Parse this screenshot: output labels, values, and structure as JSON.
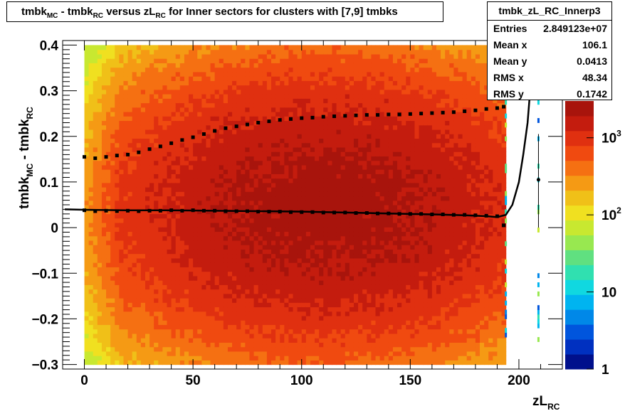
{
  "title": {
    "parts": [
      {
        "t": "tmbk",
        "sub": "MC"
      },
      {
        "t": " - tmbk",
        "sub": "RC"
      },
      {
        "t": " versus zL",
        "sub": "RC"
      },
      {
        "t": " for Inner sectors for clusters with [7,9] tmbks",
        "sub": ""
      }
    ]
  },
  "stats": {
    "name": "tmbk_zL_RC_Innerp3",
    "rows": [
      {
        "label": "Entries",
        "value": "2.849123e+07"
      },
      {
        "label": "Mean x",
        "value": "106.1"
      },
      {
        "label": "Mean y",
        "value": "0.0413"
      },
      {
        "label": "RMS x",
        "value": "48.34"
      },
      {
        "label": "RMS y",
        "value": "0.1742"
      }
    ]
  },
  "colors": {
    "palette": [
      "#00108c",
      "#0030c0",
      "#0055dd",
      "#0088e8",
      "#00b4f0",
      "#10d8e0",
      "#30e0b0",
      "#60e080",
      "#98e850",
      "#c8e830",
      "#f0e020",
      "#f0c018",
      "#f59a14",
      "#f57012",
      "#f04a10",
      "#e03010",
      "#c41c0e",
      "#a8140c"
    ],
    "marker": "#000000"
  },
  "chart_data": {
    "type": "heatmap",
    "title": "tmbk_MC - tmbk_RC versus zL_RC for Inner sectors for clusters with [7,9] tmbks",
    "xlabel": {
      "main": "zL",
      "sub": "RC"
    },
    "ylabel": {
      "parts": [
        {
          "t": "tmbk",
          "sub": "MC"
        },
        {
          "t": " - tmbk",
          "sub": "RC"
        }
      ]
    },
    "xlim": [
      -10,
      220
    ],
    "ylim": [
      -0.31,
      0.41
    ],
    "x_ticks": [
      0,
      50,
      100,
      150,
      200
    ],
    "x_tick_labels": [
      "0",
      "50",
      "100",
      "150",
      "200"
    ],
    "y_ticks": [
      -0.3,
      -0.2,
      -0.1,
      0,
      0.1,
      0.2,
      0.3,
      0.4
    ],
    "y_tick_labels": [
      "−0.3",
      "−0.2",
      "−0.1",
      "0",
      "0.1",
      "0.2",
      "0.3",
      "0.4"
    ],
    "z_scale": "log",
    "z_ticks": [
      {
        "value": 1,
        "label": "1",
        "exp": ""
      },
      {
        "value": 10,
        "label": "10",
        "exp": ""
      },
      {
        "value": 100,
        "label": "10",
        "exp": "2"
      },
      {
        "value": 1000,
        "label": "10",
        "exp": "3"
      }
    ],
    "zlim": [
      1,
      3000
    ],
    "heatmap": {
      "x_range": [
        0,
        194
      ],
      "description_of_density": "counts peak near x=110, y=0.05; lower counts at x<15 and near y extremes",
      "sparse_columns": [
        {
          "x": 194,
          "y_range": [
            -0.29,
            0.4
          ]
        },
        {
          "x": 209,
          "y_range": [
            -0.25,
            0.35
          ]
        }
      ]
    },
    "series": [
      {
        "type": "markers",
        "points": [
          [
            0,
            0.155
          ],
          [
            5,
            0.152
          ],
          [
            10,
            0.155
          ],
          [
            15,
            0.158
          ],
          [
            20,
            0.16
          ],
          [
            25,
            0.165
          ],
          [
            30,
            0.172
          ],
          [
            35,
            0.178
          ],
          [
            40,
            0.185
          ],
          [
            45,
            0.192
          ],
          [
            50,
            0.198
          ],
          [
            55,
            0.205
          ],
          [
            60,
            0.212
          ],
          [
            65,
            0.218
          ],
          [
            70,
            0.222
          ],
          [
            75,
            0.226
          ],
          [
            80,
            0.23
          ],
          [
            85,
            0.233
          ],
          [
            90,
            0.236
          ],
          [
            95,
            0.238
          ],
          [
            100,
            0.24
          ],
          [
            105,
            0.241
          ],
          [
            110,
            0.243
          ],
          [
            115,
            0.244
          ],
          [
            120,
            0.245
          ],
          [
            125,
            0.246
          ],
          [
            130,
            0.247
          ],
          [
            135,
            0.247
          ],
          [
            140,
            0.248
          ],
          [
            145,
            0.248
          ],
          [
            150,
            0.249
          ],
          [
            155,
            0.25
          ],
          [
            160,
            0.251
          ],
          [
            165,
            0.252
          ],
          [
            170,
            0.253
          ],
          [
            175,
            0.255
          ],
          [
            180,
            0.257
          ],
          [
            185,
            0.26
          ],
          [
            190,
            0.262
          ],
          [
            193,
            0.265
          ]
        ]
      },
      {
        "type": "markers",
        "points": [
          [
            0,
            0.038
          ],
          [
            5,
            0.036
          ],
          [
            10,
            0.037
          ],
          [
            15,
            0.036
          ],
          [
            20,
            0.037
          ],
          [
            25,
            0.036
          ],
          [
            30,
            0.037
          ],
          [
            35,
            0.037
          ],
          [
            40,
            0.038
          ],
          [
            45,
            0.037
          ],
          [
            50,
            0.038
          ],
          [
            55,
            0.037
          ],
          [
            60,
            0.037
          ],
          [
            65,
            0.036
          ],
          [
            70,
            0.036
          ],
          [
            75,
            0.036
          ],
          [
            80,
            0.035
          ],
          [
            85,
            0.035
          ],
          [
            90,
            0.035
          ],
          [
            95,
            0.034
          ],
          [
            100,
            0.034
          ],
          [
            105,
            0.034
          ],
          [
            110,
            0.033
          ],
          [
            115,
            0.033
          ],
          [
            120,
            0.033
          ],
          [
            125,
            0.032
          ],
          [
            130,
            0.032
          ],
          [
            135,
            0.031
          ],
          [
            140,
            0.031
          ],
          [
            145,
            0.03
          ],
          [
            150,
            0.03
          ],
          [
            155,
            0.03
          ],
          [
            160,
            0.029
          ],
          [
            165,
            0.029
          ],
          [
            170,
            0.028
          ],
          [
            175,
            0.028
          ],
          [
            180,
            0.027
          ],
          [
            185,
            0.026
          ],
          [
            190,
            0.025
          ],
          [
            193,
            0.005
          ]
        ]
      },
      {
        "type": "line",
        "points": [
          [
            -9,
            0.04
          ],
          [
            0,
            0.039
          ],
          [
            20,
            0.038
          ],
          [
            40,
            0.038
          ],
          [
            60,
            0.037
          ],
          [
            80,
            0.036
          ],
          [
            100,
            0.035
          ],
          [
            120,
            0.033
          ],
          [
            140,
            0.031
          ],
          [
            160,
            0.029
          ],
          [
            175,
            0.027
          ],
          [
            185,
            0.025
          ],
          [
            190,
            0.023
          ],
          [
            194,
            0.028
          ],
          [
            197,
            0.05
          ],
          [
            200,
            0.1
          ],
          [
            202,
            0.16
          ],
          [
            204,
            0.23
          ],
          [
            205,
            0.29
          ],
          [
            206,
            0.35
          ],
          [
            207,
            0.41
          ]
        ]
      },
      {
        "type": "error_point",
        "x": 209,
        "y": 0.105,
        "yerr_low": 0.105,
        "yerr_high": 0.1
      }
    ]
  }
}
